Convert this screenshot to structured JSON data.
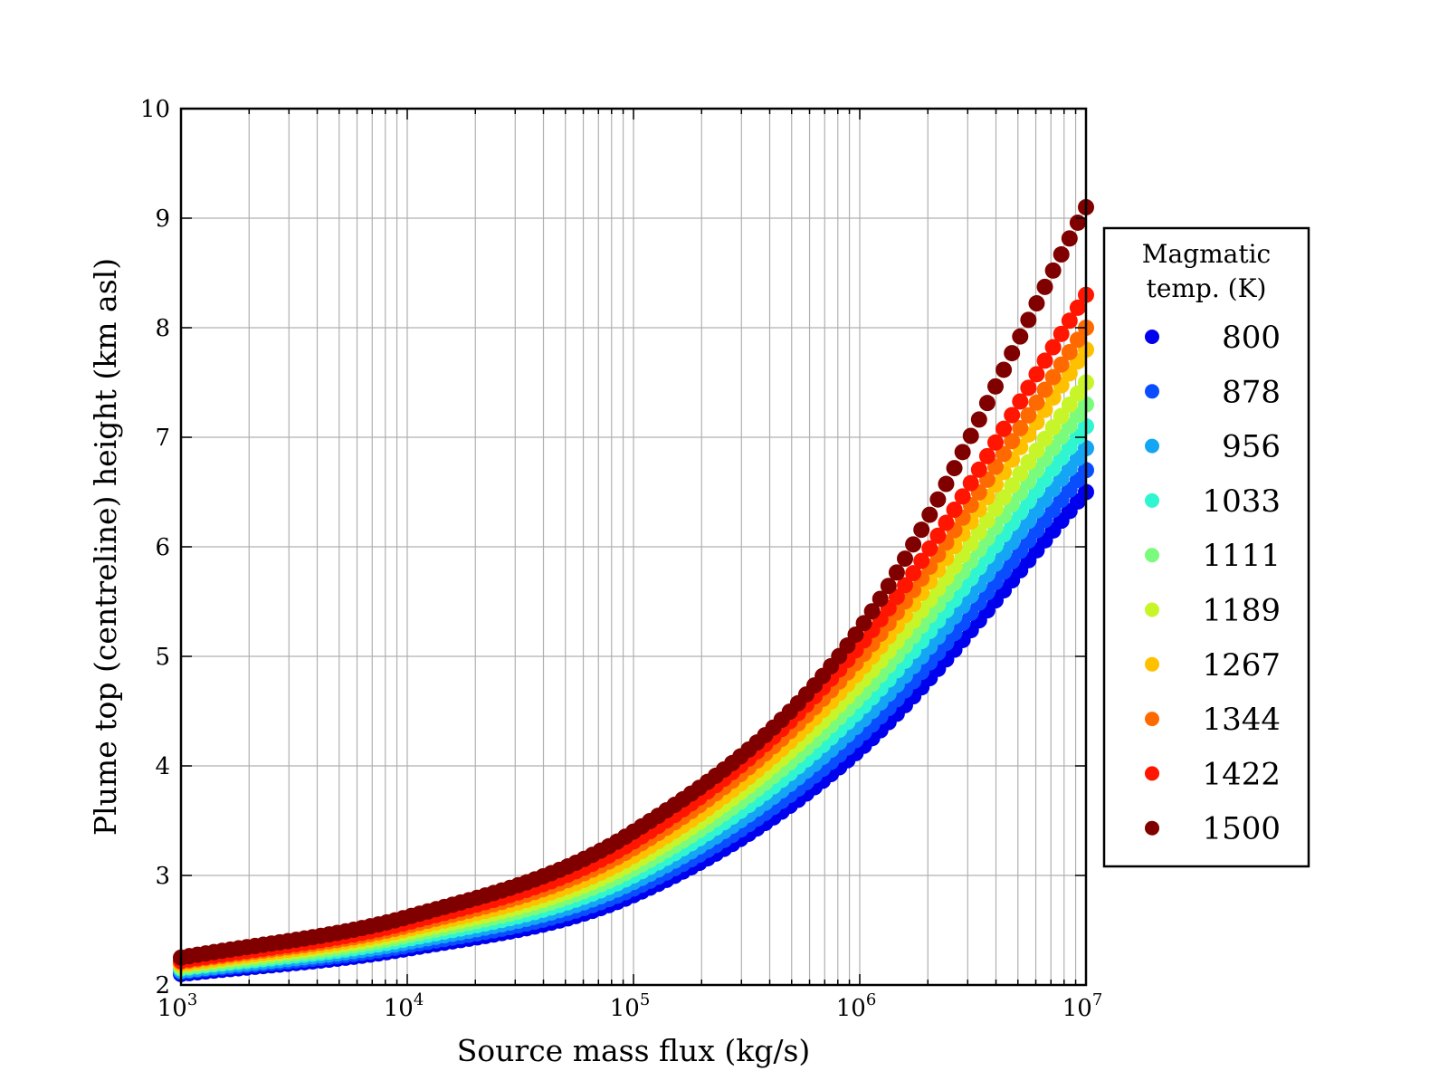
{
  "chart_data": {
    "type": "scatter",
    "title": "",
    "xlabel": "Source mass flux (kg/s)",
    "ylabel": "Plume top (centreline) height (km asl)",
    "xscale": "log",
    "xlim": [
      1000,
      10000000
    ],
    "ylim": [
      2,
      10
    ],
    "x_ticks": [
      {
        "base": "10",
        "exp": "3"
      },
      {
        "base": "10",
        "exp": "4"
      },
      {
        "base": "10",
        "exp": "5"
      },
      {
        "base": "10",
        "exp": "6"
      },
      {
        "base": "10",
        "exp": "7"
      }
    ],
    "y_ticks": [
      "2",
      "3",
      "4",
      "5",
      "6",
      "7",
      "8",
      "9",
      "10"
    ],
    "grid": true,
    "legend": {
      "placement": "outside-right",
      "title_lines": [
        "Magmatic",
        "temp. (K)"
      ]
    },
    "series": [
      {
        "name": "800",
        "color": "#0000ee",
        "x": [
          1000,
          10000,
          100000,
          1000000,
          10000000
        ],
        "y": [
          2.1,
          2.33,
          2.82,
          4.15,
          6.5
        ]
      },
      {
        "name": "878",
        "color": "#0a4dff",
        "x": [
          1000,
          10000,
          100000,
          1000000,
          10000000
        ],
        "y": [
          2.12,
          2.36,
          2.88,
          4.27,
          6.7
        ]
      },
      {
        "name": "956",
        "color": "#14a5f5",
        "x": [
          1000,
          10000,
          100000,
          1000000,
          10000000
        ],
        "y": [
          2.13,
          2.39,
          2.94,
          4.39,
          6.9
        ]
      },
      {
        "name": "1033",
        "color": "#2ff5d0",
        "x": [
          1000,
          10000,
          100000,
          1000000,
          10000000
        ],
        "y": [
          2.15,
          2.42,
          3.0,
          4.51,
          7.1
        ]
      },
      {
        "name": "1111",
        "color": "#7bfb7b",
        "x": [
          1000,
          10000,
          100000,
          1000000,
          10000000
        ],
        "y": [
          2.16,
          2.45,
          3.06,
          4.63,
          7.3
        ]
      },
      {
        "name": "1189",
        "color": "#c8f52a",
        "x": [
          1000,
          10000,
          100000,
          1000000,
          10000000
        ],
        "y": [
          2.18,
          2.48,
          3.12,
          4.75,
          7.5
        ]
      },
      {
        "name": "1267",
        "color": "#ffc000",
        "x": [
          1000,
          10000,
          100000,
          1000000,
          10000000
        ],
        "y": [
          2.19,
          2.51,
          3.18,
          4.87,
          7.8
        ]
      },
      {
        "name": "1344",
        "color": "#ff6a00",
        "x": [
          1000,
          10000,
          100000,
          1000000,
          10000000
        ],
        "y": [
          2.21,
          2.54,
          3.25,
          4.98,
          8.0
        ]
      },
      {
        "name": "1422",
        "color": "#ff1500",
        "x": [
          1000,
          10000,
          100000,
          1000000,
          10000000
        ],
        "y": [
          2.22,
          2.57,
          3.31,
          5.1,
          8.3
        ]
      },
      {
        "name": "1500",
        "color": "#800000",
        "x": [
          1000,
          10000,
          100000,
          1000000,
          10000000
        ],
        "y": [
          2.25,
          2.62,
          3.4,
          5.25,
          9.1
        ]
      }
    ]
  }
}
